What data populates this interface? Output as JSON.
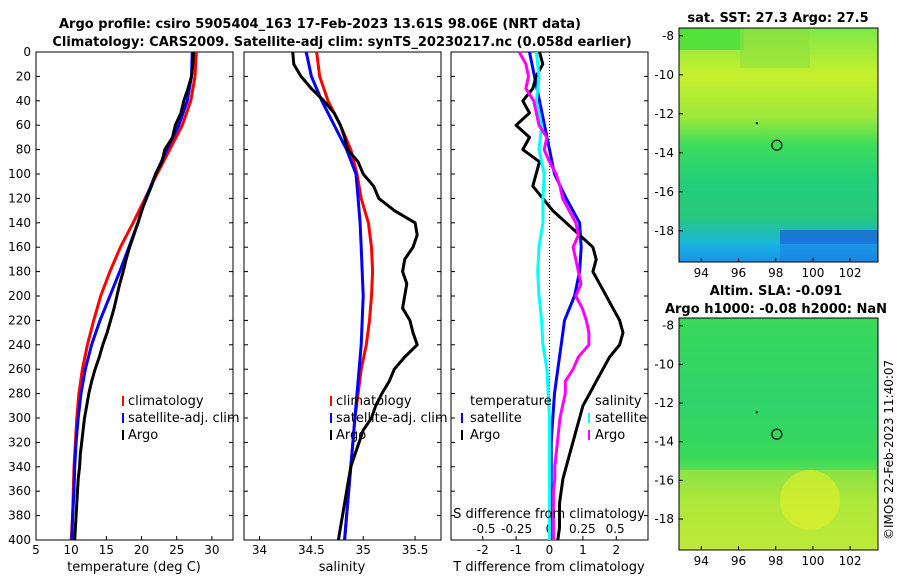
{
  "header": {
    "line1": "Argo profile: csiro 5905404_163 17-Feb-2023 13.61S 98.06E (NRT data)",
    "line2": "Climatology: CARS2009. Satellite-adj clim: synTS_20230217.nc (0.058d earlier)"
  },
  "colors": {
    "climatology": "#ff0000",
    "satellite": "#0000ff",
    "argo": "#000000",
    "sat_diff_t": "#00ffff",
    "sal_diff": "#ff00ff"
  },
  "chart_data": [
    {
      "id": "temperature",
      "type": "line",
      "xlabel": "temperature (deg C)",
      "ylabel": "depth",
      "xlim": [
        5,
        33
      ],
      "ylim": [
        400,
        0
      ],
      "xticks": [
        "5",
        "10",
        "15",
        "20",
        "25",
        "30"
      ],
      "yticks": [
        "0",
        "20",
        "40",
        "60",
        "80",
        "100",
        "120",
        "140",
        "160",
        "180",
        "200",
        "220",
        "240",
        "260",
        "280",
        "300",
        "320",
        "340",
        "360",
        "380",
        "400"
      ],
      "legend": [
        "climatology",
        "satellite-adj. clim",
        "Argo"
      ],
      "series": [
        {
          "name": "climatology",
          "depth": [
            0,
            20,
            40,
            60,
            80,
            100,
            120,
            140,
            160,
            180,
            200,
            220,
            240,
            260,
            280,
            300,
            320,
            340,
            360,
            380,
            400
          ],
          "values": [
            27.8,
            27.6,
            27.0,
            25.8,
            24.0,
            22.2,
            20.5,
            18.8,
            17.0,
            15.5,
            14.2,
            13.2,
            12.3,
            11.6,
            11.1,
            10.8,
            10.6,
            10.4,
            10.3,
            10.2,
            10.0
          ]
        },
        {
          "name": "satellite-adj. clim",
          "depth": [
            0,
            20,
            40,
            60,
            80,
            100,
            120,
            140,
            160,
            180,
            200,
            220,
            240,
            260,
            280,
            300,
            320,
            340,
            360,
            380,
            400
          ],
          "values": [
            27.2,
            27.1,
            26.5,
            25.3,
            23.6,
            22.0,
            20.6,
            19.5,
            18.2,
            16.9,
            15.5,
            14.1,
            12.9,
            12.0,
            11.4,
            11.0,
            10.7,
            10.5,
            10.4,
            10.2,
            10.1
          ]
        },
        {
          "name": "Argo",
          "depth": [
            0,
            10,
            20,
            30,
            40,
            50,
            60,
            70,
            80,
            90,
            100,
            110,
            120,
            130,
            140,
            150,
            160,
            170,
            180,
            190,
            200,
            210,
            220,
            230,
            240,
            250,
            260,
            270,
            280,
            290,
            300,
            310,
            320,
            330,
            340,
            350,
            360,
            370,
            380,
            390,
            400
          ],
          "values": [
            27.4,
            27.3,
            27.1,
            26.6,
            26.0,
            25.6,
            24.8,
            24.4,
            23.3,
            22.9,
            22.0,
            21.4,
            20.7,
            20.0,
            19.5,
            18.9,
            18.3,
            17.8,
            17.4,
            16.9,
            16.5,
            16.1,
            15.6,
            15.1,
            14.5,
            14.0,
            13.4,
            12.9,
            12.5,
            12.2,
            11.9,
            11.7,
            11.5,
            11.3,
            11.2,
            11.0,
            10.9,
            10.8,
            10.7,
            10.6,
            10.5
          ]
        }
      ]
    },
    {
      "id": "salinity",
      "type": "line",
      "xlabel": "salinity",
      "ylim": [
        400,
        0
      ],
      "xlim": [
        33.85,
        35.75
      ],
      "xticks": [
        "34",
        "34.5",
        "35",
        "35.5"
      ],
      "legend": [
        "climatology",
        "satellite-adj. clim",
        "Argo"
      ],
      "series": [
        {
          "name": "climatology",
          "depth": [
            0,
            20,
            40,
            60,
            80,
            100,
            120,
            140,
            160,
            180,
            200,
            220,
            240,
            260,
            280,
            300,
            320,
            340,
            360,
            380,
            400
          ],
          "values": [
            34.55,
            34.58,
            34.66,
            34.78,
            34.88,
            34.94,
            34.98,
            35.05,
            35.08,
            35.09,
            35.08,
            35.06,
            35.03,
            34.98,
            34.95,
            34.92,
            34.9,
            34.88,
            34.86,
            34.84,
            34.82
          ]
        },
        {
          "name": "satellite-adj. clim",
          "depth": [
            0,
            20,
            40,
            60,
            80,
            100,
            120,
            140,
            160,
            180,
            200,
            220,
            240,
            260,
            280,
            300,
            320,
            340,
            360,
            380,
            400
          ],
          "values": [
            34.45,
            34.5,
            34.6,
            34.72,
            34.84,
            34.93,
            34.95,
            34.97,
            34.98,
            34.99,
            35.0,
            34.99,
            34.98,
            34.96,
            34.94,
            34.92,
            34.9,
            34.88,
            34.86,
            34.84,
            34.82
          ]
        },
        {
          "name": "Argo",
          "depth": [
            0,
            10,
            20,
            30,
            40,
            50,
            60,
            70,
            80,
            90,
            100,
            110,
            120,
            130,
            140,
            150,
            160,
            170,
            180,
            190,
            200,
            210,
            220,
            230,
            240,
            250,
            260,
            270,
            280,
            290,
            300,
            310,
            320,
            330,
            340,
            350,
            360,
            370,
            380,
            390,
            400
          ],
          "values": [
            34.32,
            34.33,
            34.4,
            34.5,
            34.62,
            34.72,
            34.78,
            34.82,
            34.85,
            34.95,
            35.0,
            35.1,
            35.15,
            35.3,
            35.5,
            35.52,
            35.48,
            35.4,
            35.38,
            35.42,
            35.4,
            35.38,
            35.45,
            35.48,
            35.52,
            35.4,
            35.3,
            35.25,
            35.18,
            35.12,
            35.08,
            35.0,
            34.96,
            34.92,
            34.88,
            34.86,
            34.84,
            34.82,
            34.8,
            34.78,
            34.76
          ]
        }
      ]
    },
    {
      "id": "difference",
      "type": "line",
      "xlabel": "T difference from climatology",
      "x2label": "S difference from climatology",
      "ylim": [
        400,
        0
      ],
      "xlim": [
        -2.95,
        2.95
      ],
      "xticks": [
        "-2",
        "-1",
        "0",
        "1",
        "2"
      ],
      "x2ticks": [
        "-0.5",
        "-0.25",
        "0",
        "0.25",
        "0.5"
      ],
      "legend_t": [
        "temperature",
        "satellite",
        "Argo"
      ],
      "legend_s": [
        "salinity",
        "satellite",
        "Argo"
      ],
      "series": [
        {
          "name": "temperature satellite",
          "color": "satellite",
          "depth": [
            0,
            20,
            40,
            60,
            80,
            100,
            120,
            140,
            160,
            180,
            200,
            220,
            240,
            260,
            280,
            300,
            320,
            340,
            360,
            380,
            400
          ],
          "values": [
            -0.6,
            -0.45,
            -0.3,
            -0.15,
            0.0,
            0.15,
            0.5,
            0.9,
            0.95,
            0.9,
            0.75,
            0.45,
            0.35,
            0.25,
            0.15,
            0.1,
            0.05,
            0.05,
            0.05,
            0.05,
            0.05
          ]
        },
        {
          "name": "temperature Argo",
          "color": "argo",
          "depth": [
            0,
            10,
            20,
            30,
            40,
            50,
            60,
            70,
            80,
            90,
            100,
            110,
            120,
            130,
            140,
            150,
            160,
            170,
            180,
            190,
            200,
            210,
            220,
            230,
            240,
            250,
            260,
            270,
            280,
            290,
            300,
            310,
            320,
            330,
            340,
            350,
            360,
            370,
            380,
            390,
            400
          ],
          "values": [
            -0.3,
            -0.2,
            -0.4,
            -0.5,
            -0.8,
            -0.6,
            -1.0,
            -0.6,
            -0.8,
            -0.3,
            -0.4,
            -0.5,
            -0.2,
            0.1,
            0.5,
            0.9,
            1.3,
            1.4,
            1.3,
            1.5,
            1.7,
            1.9,
            2.1,
            2.2,
            2.1,
            1.8,
            1.6,
            1.4,
            1.2,
            1.0,
            0.9,
            0.8,
            0.7,
            0.6,
            0.5,
            0.4,
            0.35,
            0.3,
            0.3,
            0.3,
            0.25
          ]
        },
        {
          "name": "salinity satellite",
          "color": "sat_diff_t",
          "depth": [
            0,
            20,
            40,
            60,
            80,
            100,
            120,
            140,
            160,
            180,
            200,
            220,
            240,
            260,
            280,
            300,
            320,
            340,
            360,
            380,
            400
          ],
          "values": [
            -0.1,
            -0.08,
            -0.1,
            -0.06,
            -0.08,
            -0.04,
            -0.05,
            -0.05,
            -0.08,
            -0.09,
            -0.08,
            -0.06,
            -0.05,
            -0.02,
            -0.01,
            0.0,
            0.0,
            0.0,
            0.0,
            0.0,
            0.0
          ]
        },
        {
          "name": "salinity Argo",
          "color": "sal_diff",
          "depth": [
            0,
            10,
            20,
            30,
            40,
            50,
            60,
            70,
            80,
            90,
            100,
            110,
            120,
            130,
            140,
            150,
            160,
            170,
            180,
            190,
            200,
            210,
            220,
            230,
            240,
            250,
            260,
            270,
            280,
            290,
            300,
            310,
            320,
            330,
            340,
            350,
            360,
            370,
            380,
            390,
            400
          ],
          "values": [
            -0.23,
            -0.18,
            -0.16,
            -0.18,
            -0.12,
            -0.1,
            -0.08,
            -0.02,
            -0.04,
            0.0,
            0.05,
            0.08,
            0.1,
            0.15,
            0.2,
            0.22,
            0.18,
            0.2,
            0.22,
            0.24,
            0.2,
            0.25,
            0.28,
            0.3,
            0.3,
            0.22,
            0.18,
            0.12,
            0.12,
            0.1,
            0.08,
            0.07,
            0.06,
            0.05,
            0.04,
            0.04,
            0.03,
            0.03,
            0.03,
            0.03,
            0.03
          ]
        }
      ]
    },
    {
      "id": "sst_map",
      "type": "heatmap",
      "title": "sat. SST: 27.3 Argo: 27.5",
      "xticks": [
        "94",
        "96",
        "98",
        "100",
        "102"
      ],
      "yticks": [
        "-8",
        "-10",
        "-12",
        "-14",
        "-16",
        "-18"
      ],
      "xlim": [
        92.8,
        103.5
      ],
      "ylim": [
        -19.6,
        -7.6
      ],
      "marker": {
        "lon": 98.06,
        "lat": -13.61
      }
    },
    {
      "id": "sla_map",
      "type": "heatmap",
      "title": "Altim. SLA: -0.091",
      "subtitle": "Argo h1000: -0.08 h2000: NaN",
      "xticks": [
        "94",
        "96",
        "98",
        "100",
        "102"
      ],
      "yticks": [
        "-8",
        "-10",
        "-12",
        "-14",
        "-16",
        "-18"
      ],
      "xlim": [
        92.8,
        103.5
      ],
      "ylim": [
        -19.6,
        -7.6
      ],
      "marker": {
        "lon": 98.06,
        "lat": -13.61
      }
    }
  ],
  "watermark": "©IMOS 22-Feb-2023 11:40:07"
}
